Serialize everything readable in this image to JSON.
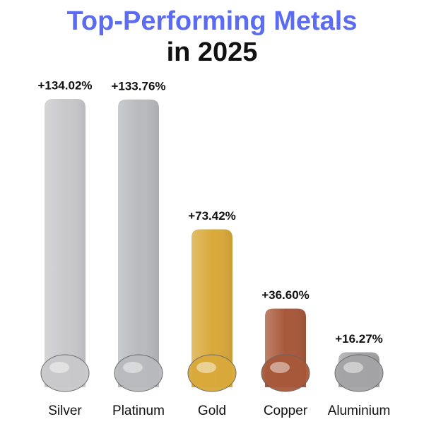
{
  "chart_data": {
    "type": "bar",
    "title": "Top-Performing Metals",
    "subtitle": "in 2025",
    "categories": [
      "Silver",
      "Platinum",
      "Gold",
      "Copper",
      "Aluminium"
    ],
    "values": [
      134.02,
      133.76,
      73.42,
      36.6,
      16.27
    ],
    "value_labels": [
      "+134.02%",
      "+133.76%",
      "+73.42%",
      "+36.60%",
      "+16.27%"
    ],
    "colors": [
      "#c9c9cb",
      "#b9babe",
      "#d9a93a",
      "#a8583a",
      "#a4a4a6"
    ]
  }
}
